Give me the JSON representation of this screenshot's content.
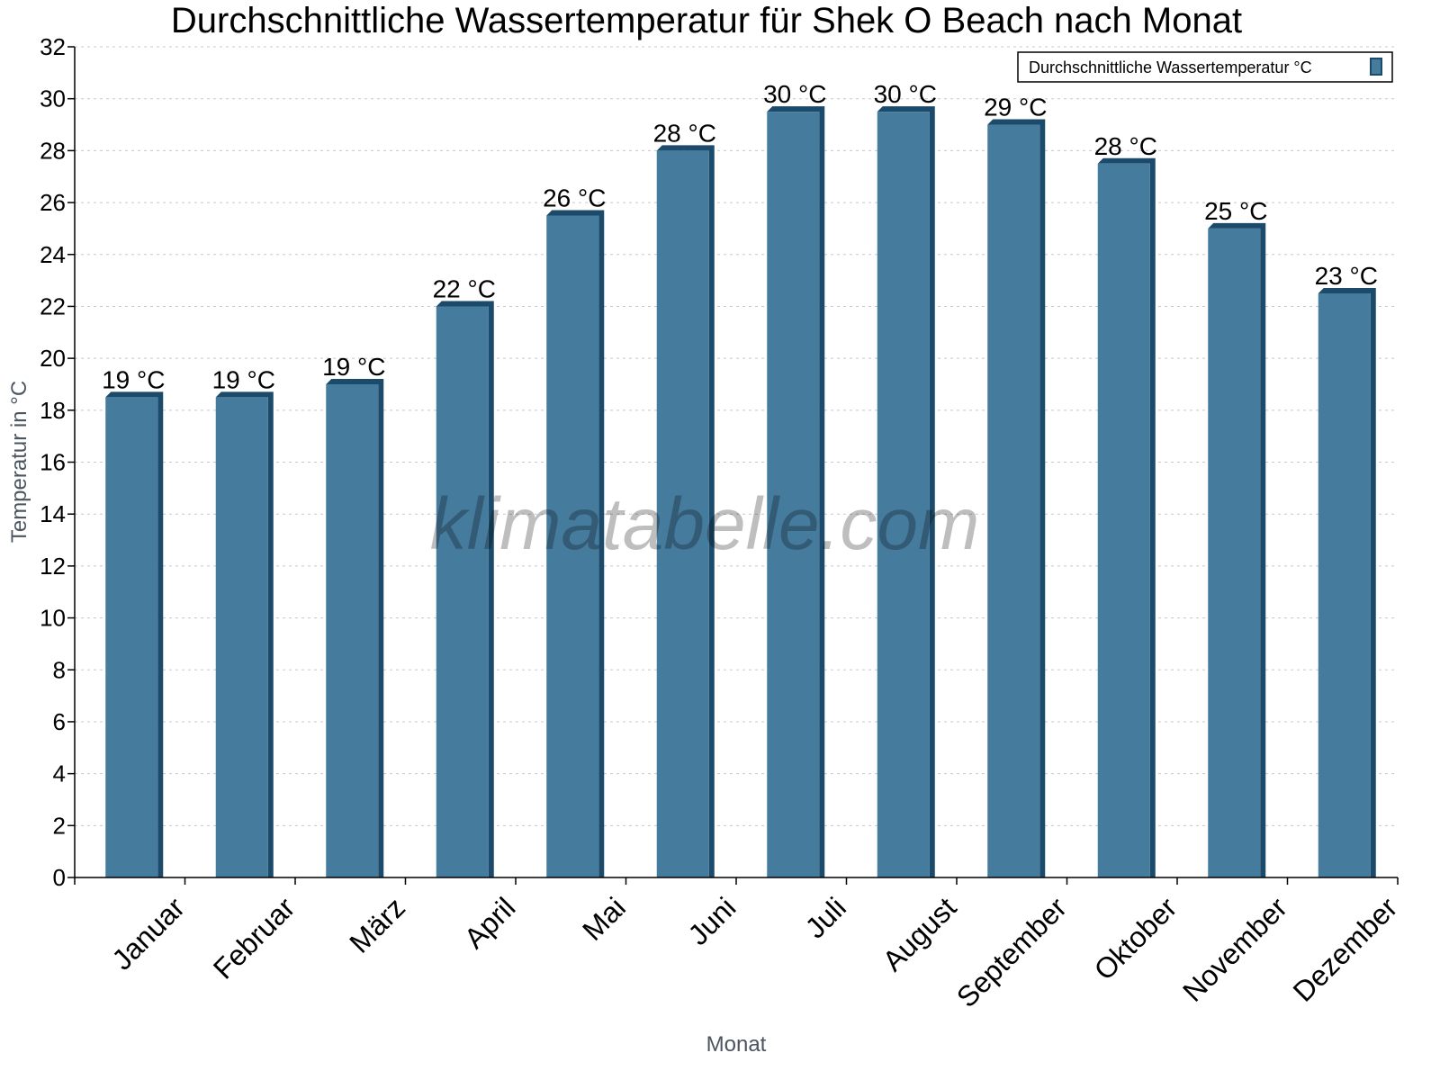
{
  "chart_data": {
    "type": "bar",
    "title": "Durchschnittliche Wassertemperatur für Shek O Beach nach Monat",
    "xlabel": "Monat",
    "ylabel": "Temperatur in °C",
    "ylim": [
      0,
      32
    ],
    "yticks": [
      0,
      2,
      4,
      6,
      8,
      10,
      12,
      14,
      16,
      18,
      20,
      22,
      24,
      26,
      28,
      30,
      32
    ],
    "grid": true,
    "legend_position": "top-right",
    "categories": [
      "Januar",
      "Februar",
      "März",
      "April",
      "Mai",
      "Juni",
      "Juli",
      "August",
      "September",
      "Oktober",
      "November",
      "Dezember"
    ],
    "series": [
      {
        "name": "Durchschnittliche Wassertemperatur °C",
        "values": [
          18.5,
          18.5,
          19,
          22,
          25.5,
          28,
          29.5,
          29.5,
          29,
          27.5,
          25,
          22.5
        ],
        "labels": [
          "19 °C",
          "19 °C",
          "19 °C",
          "22 °C",
          "26 °C",
          "28 °C",
          "30 °C",
          "30 °C",
          "29 °C",
          "28 °C",
          "25 °C",
          "23 °C"
        ],
        "color": "#457b9d",
        "edge_color": "#1b4a6b"
      }
    ],
    "watermark": "klimatabelle.com"
  }
}
